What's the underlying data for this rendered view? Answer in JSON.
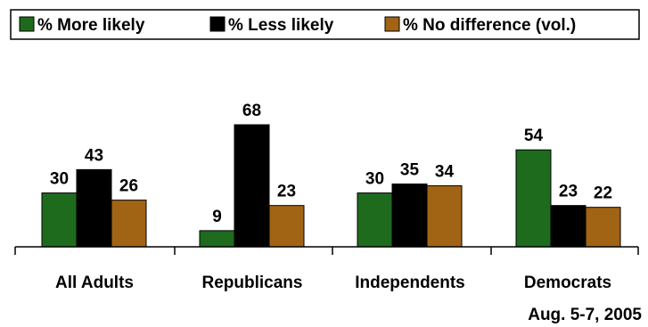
{
  "chart_data": {
    "type": "bar",
    "categories": [
      "All Adults",
      "Republicans",
      "Independents",
      "Democrats"
    ],
    "series": [
      {
        "name": "% More likely",
        "values": [
          30,
          9,
          30,
          54
        ],
        "color": "#1e6b1e"
      },
      {
        "name": "% Less likely",
        "values": [
          43,
          68,
          35,
          23
        ],
        "color": "#000000"
      },
      {
        "name": "% No difference (vol.)",
        "values": [
          26,
          23,
          34,
          22
        ],
        "color": "#a06414"
      }
    ],
    "ylim": [
      0,
      68
    ],
    "legend_position": "top",
    "grid": false,
    "annotation": "Aug. 5-7, 2005"
  }
}
